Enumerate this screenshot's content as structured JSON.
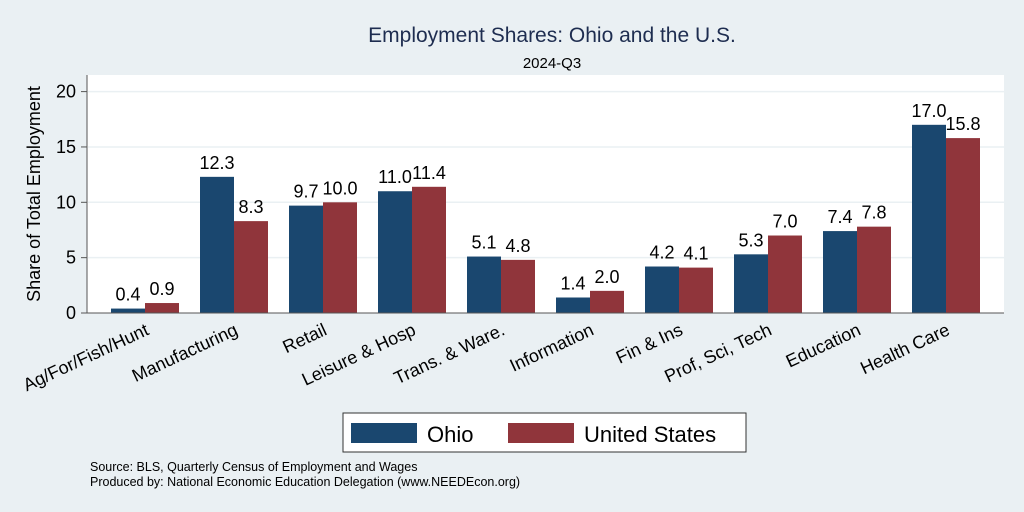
{
  "chart_data": {
    "type": "bar",
    "title": "Employment Shares: Ohio and the U.S.",
    "subtitle": "2024-Q3",
    "xlabel": "",
    "ylabel": "Share of Total Employment",
    "ylim": [
      0,
      21.5
    ],
    "yticks": [
      0,
      5,
      10,
      15,
      20
    ],
    "grid": true,
    "legend_position": "bottom",
    "categories": [
      "Ag/For/Fish/Hunt",
      "Manufacturing",
      "Retail",
      "Leisure & Hosp",
      "Trans. & Ware.",
      "Information",
      "Fin & Ins",
      "Prof, Sci, Tech",
      "Education",
      "Health Care"
    ],
    "series": [
      {
        "name": "Ohio",
        "color": "#1a476f",
        "values": [
          0.4,
          12.3,
          9.7,
          11.0,
          5.1,
          1.4,
          4.2,
          5.3,
          7.4,
          17.0
        ]
      },
      {
        "name": "United States",
        "color": "#90353b",
        "values": [
          0.9,
          8.3,
          10.0,
          11.4,
          4.8,
          2.0,
          4.1,
          7.0,
          7.8,
          15.8
        ]
      }
    ]
  },
  "notes": {
    "source": "Source: BLS, Quarterly Census of Employment and Wages",
    "produced": "Produced by: National Economic Education Delegation (www.NEEDEcon.org)"
  }
}
